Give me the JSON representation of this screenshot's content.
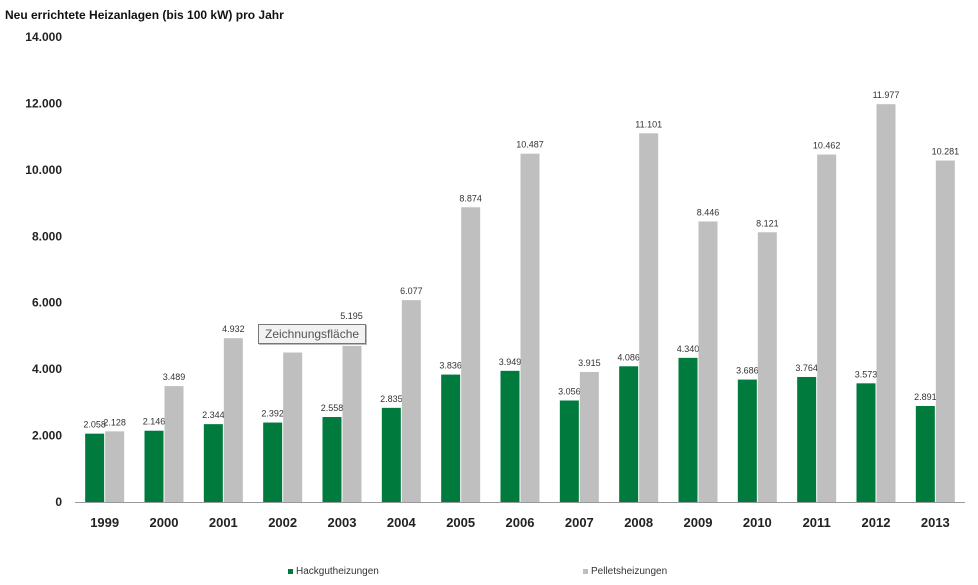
{
  "chart_data": {
    "type": "bar",
    "title": "Neu errichtete Heizanlagen (bis 100 kW) pro Jahr",
    "categories": [
      "1999",
      "2000",
      "2001",
      "2002",
      "2003",
      "2004",
      "2005",
      "2006",
      "2007",
      "2008",
      "2009",
      "2010",
      "2011",
      "2012",
      "2013"
    ],
    "series": [
      {
        "name": "Hackgutheizungen",
        "color": "#007a3d",
        "values": [
          2058,
          2146,
          2344,
          2392,
          2558,
          2835,
          3836,
          3949,
          3056,
          4086,
          4340,
          3686,
          3764,
          3573,
          2891
        ],
        "labels": [
          "2.058",
          "2.146",
          "2.344",
          "2.392",
          "2.558",
          "2.835",
          "3.836",
          "3.949",
          "3.056",
          "4.086",
          "4.340",
          "3.686",
          "3.764",
          "3.573",
          "2.891"
        ]
      },
      {
        "name": "Pelletsheizungen",
        "color": "#bfbfbf",
        "values": [
          2128,
          3489,
          4932,
          null,
          null,
          6077,
          8874,
          10487,
          3915,
          11101,
          8446,
          8121,
          10462,
          11977,
          10281
        ],
        "labels": [
          "2.128",
          "3.489",
          "4.932",
          "",
          "",
          "6.077",
          "8.874",
          "10.487",
          "3.915",
          "11.101",
          "8.446",
          "8.121",
          "10.462",
          "11.977",
          "10.281"
        ]
      }
    ],
    "ylim": [
      0,
      14000
    ],
    "yticks": [
      "0",
      "2.000",
      "4.000",
      "6.000",
      "8.000",
      "10.000",
      "12.000",
      "14.000"
    ],
    "grid": false,
    "legend_position": "bottom"
  },
  "tooltip": {
    "text": "Zeichnungsfläche",
    "value_label": "5.195"
  },
  "legend": {
    "items": [
      "Hackgutheizungen",
      "Pelletsheizungen"
    ]
  }
}
